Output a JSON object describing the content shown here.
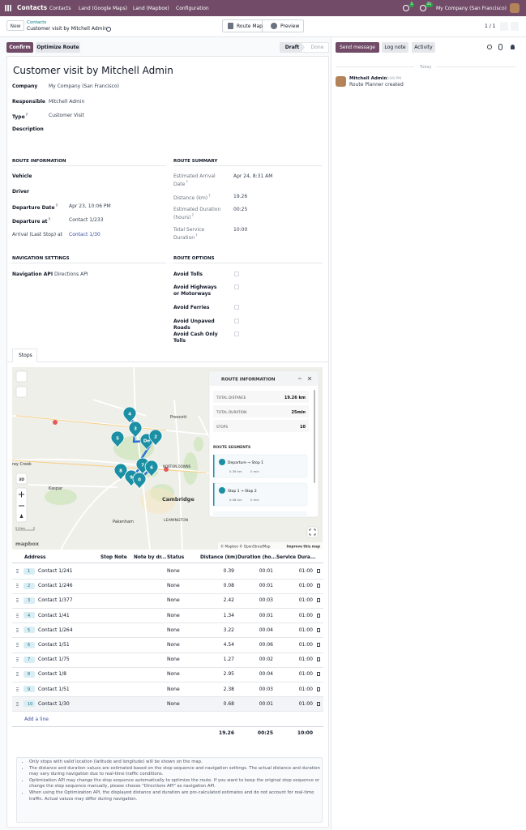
{
  "navbar": {
    "app": "Contacts",
    "menu": [
      "Contacts",
      "Land (Google Maps)",
      "Land (Mapbox)",
      "Configuration"
    ],
    "badges": [
      "5",
      "31"
    ],
    "company": "My Company (San Francisco)"
  },
  "control": {
    "new": "New",
    "breadcrumb_parent": "Contacts",
    "breadcrumb_current": "Customer visit by Mitchell Admin",
    "views": [
      "Route Map",
      "Preview"
    ],
    "pager": "1 / 1"
  },
  "actions": {
    "buttons": [
      "Confirm",
      "Optimize Route"
    ],
    "statuses": [
      "Draft",
      "Done"
    ]
  },
  "chatter": {
    "buttons": [
      "Send message",
      "Log note",
      "Activity"
    ],
    "date": "Today",
    "author": "Mitchell Admin",
    "time": "10:09 PM",
    "message": "Route Planner created"
  },
  "form": {
    "title": "Customer visit by Mitchell Admin",
    "fields": [
      {
        "label": "Company",
        "value": "My Company (San Francisco)"
      },
      {
        "label": "Responsible",
        "value": "Mitchell Admin"
      },
      {
        "label": "Type",
        "help": "?",
        "value": "Customer Visit"
      },
      {
        "label": "Description"
      }
    ],
    "route_information": {
      "title": "ROUTE INFORMATION",
      "fields": [
        {
          "label": "Vehicle"
        },
        {
          "label": "Driver"
        },
        {
          "label": "Departure Date",
          "help": "?",
          "value": "Apr 23, 10:06 PM"
        },
        {
          "label": "Departure at",
          "help": "?",
          "value": "Contact 1/233"
        },
        {
          "label": "Arrival (Last Stop) at",
          "value": "Contact 1/30"
        }
      ]
    },
    "route_summary": {
      "title": "ROUTE SUMMARY",
      "fields": [
        {
          "label": "Estimated Arrival Date",
          "help": "?",
          "value": "Apr 24, 8:31 AM"
        },
        {
          "label": "Distance (km)",
          "help": "?",
          "value": "19.26"
        },
        {
          "label": "Estimated Duration (hours)",
          "help": "?",
          "value": "00:25"
        },
        {
          "label": "Total Service Duration",
          "help": "?",
          "value": "10:00"
        }
      ]
    },
    "navigation_settings": {
      "title": "NAVIGATION SETTINGS",
      "fields": [
        {
          "label": "Navigation API",
          "value": "Directions API"
        }
      ]
    },
    "route_options": {
      "title": "ROUTE OPTIONS",
      "options": [
        "Avoid Tolls",
        "Avoid Highways or Motorways",
        "Avoid Ferries",
        "Avoid Unpaved Roads",
        "Avoid Cash Only Tolls"
      ]
    }
  },
  "tabs": [
    "Stops"
  ],
  "map": {
    "info_title": "ROUTE INFORMATION",
    "total_distance_label": "TOTAL DISTANCE",
    "total_distance": "19.26 km",
    "total_duration_label": "TOTAL DURATION",
    "total_duration": "25min",
    "stops_label": "STOPS",
    "stops": "10",
    "segments_title": "ROUTE SEGMENTS",
    "segments": [
      {
        "name": "Departure → Stop 1",
        "distance": "0.39 km",
        "duration": "0 min"
      },
      {
        "name": "Stop 1 → Stop 2",
        "distance": "0.08 km",
        "duration": "0 min"
      }
    ],
    "markers": [
      "4",
      "3",
      "5",
      "De",
      "2",
      "7",
      "6",
      "8",
      "9",
      "0"
    ],
    "places": [
      "Prescott",
      "NORTON DOWNS",
      "Kaspar",
      "Cambridge",
      "Pakenham",
      "LEAMINGTON",
      "Grey Creek"
    ],
    "control_3d": "3D",
    "scale": "3 km",
    "logo": "mapbox",
    "attribution": "© Mapbox © OpenStreetMap",
    "improve": "Improve this map"
  },
  "stops": {
    "columns": [
      "Address",
      "Stop Note",
      "Note by dr...",
      "Status",
      "Distance (km)",
      "Duration (ho...",
      "Service Dura..."
    ],
    "rows": [
      {
        "seq": "1",
        "address": "Contact 1/241",
        "status": "None",
        "distance": 0.39,
        "duration": "00:01",
        "service": "01:00"
      },
      {
        "seq": "2",
        "address": "Contact 1/246",
        "status": "None",
        "distance": 0.08,
        "duration": "00:01",
        "service": "01:00"
      },
      {
        "seq": "3",
        "address": "Contact 1/377",
        "status": "None",
        "distance": 2.42,
        "duration": "00:03",
        "service": "01:00"
      },
      {
        "seq": "4",
        "address": "Contact 1/41",
        "status": "None",
        "distance": 1.34,
        "duration": "00:01",
        "service": "01:00"
      },
      {
        "seq": "5",
        "address": "Contact 1/264",
        "status": "None",
        "distance": 3.22,
        "duration": "00:04",
        "service": "01:00"
      },
      {
        "seq": "6",
        "address": "Contact 1/51",
        "status": "None",
        "distance": 4.54,
        "duration": "00:06",
        "service": "01:00"
      },
      {
        "seq": "7",
        "address": "Contact 1/75",
        "status": "None",
        "distance": 1.27,
        "duration": "00:02",
        "service": "01:00"
      },
      {
        "seq": "8",
        "address": "Contact 1/8",
        "status": "None",
        "distance": 2.95,
        "duration": "00:04",
        "service": "01:00"
      },
      {
        "seq": "9",
        "address": "Contact 1/51",
        "status": "None",
        "distance": 2.38,
        "duration": "00:03",
        "service": "01:00"
      },
      {
        "seq": "10",
        "address": "Contact 1/30",
        "status": "None",
        "distance": 0.68,
        "duration": "00:01",
        "service": "01:00"
      }
    ],
    "add_line": "Add a line",
    "totals": {
      "distance": 19.26,
      "duration": "00:25",
      "service": "10:00"
    }
  },
  "notes": [
    "Only stops with valid location (latitude and longitude) will be shown on the map.",
    "The distance and duration values are estimated based on the stop sequence and navigation settings. The actual distance and duration may vary during navigation due to real-time traffic conditions.",
    "Optimization API may change the stop sequence automatically to optimize the route. If you want to keep the original stop sequence or change the stop sequence manually, please choose \"Directions API\" as navigation API.",
    "When using the Optimization API, the displayed distance and duration are pre-calculated estimates and do not account for real-time traffic. Actual values may differ during navigation."
  ]
}
